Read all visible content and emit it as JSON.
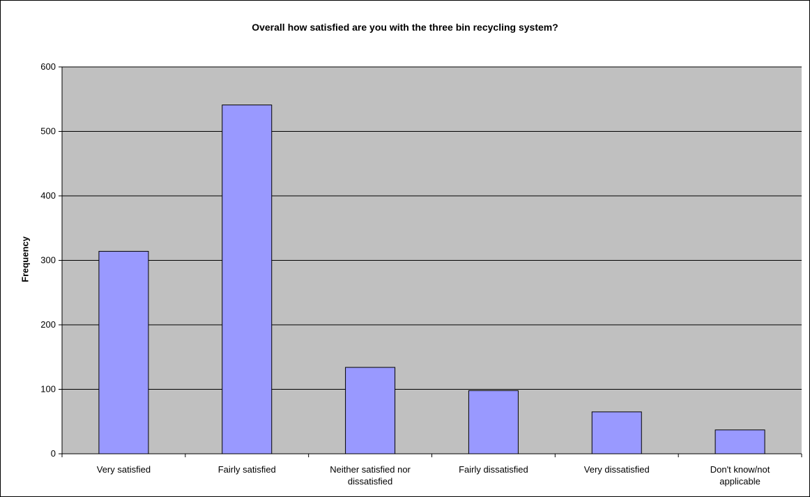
{
  "chart_data": {
    "type": "bar",
    "title": "Overall how satisfied are you with the three bin recycling system?",
    "xlabel": "",
    "ylabel": "Frequency",
    "categories": [
      [
        "Very satisfied"
      ],
      [
        "Fairly satisfied"
      ],
      [
        "Neither satisfied nor",
        "dissatisfied"
      ],
      [
        "Fairly dissatisfied"
      ],
      [
        "Very dissatisfied"
      ],
      [
        "Don't know/not",
        "applicable"
      ]
    ],
    "values": [
      314,
      541,
      134,
      98,
      65,
      37
    ],
    "ylim": [
      0,
      600
    ],
    "yticks": [
      0,
      100,
      200,
      300,
      400,
      500,
      600
    ],
    "grid": true,
    "legend": "none",
    "colors": {
      "bar_fill": "#9999FF",
      "bar_stroke": "#000000",
      "plot_background": "#C0C0C0",
      "gridline": "#000000"
    }
  }
}
